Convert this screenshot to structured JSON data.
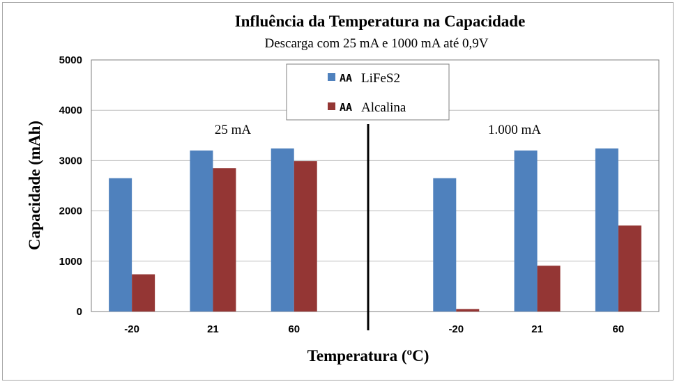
{
  "chart_data": {
    "type": "bar",
    "title": "Influência da Temperatura na Capacidade",
    "subtitle": "Descarga com 25 mA e 1000 mA até 0,9V",
    "xlabel": "Temperatura (ºC)",
    "ylabel": "Capacidade (mAh)",
    "ylim": [
      0,
      5000
    ],
    "yticks": [
      0,
      1000,
      2000,
      3000,
      4000,
      5000
    ],
    "grid": true,
    "legend_position": "top-center",
    "categories": [
      "-20",
      "21",
      "60",
      "",
      "-20",
      "21",
      "60"
    ],
    "series": [
      {
        "name": "LiFeS2",
        "legend_prefix": "AA",
        "color": "#4f81bd",
        "values": [
          2650,
          3200,
          3240,
          null,
          2650,
          3200,
          3240
        ]
      },
      {
        "name": "Alcalina",
        "legend_prefix": "AA",
        "color": "#943634",
        "values": [
          740,
          2850,
          2990,
          null,
          50,
          910,
          1710
        ]
      }
    ],
    "group_labels": [
      "25 mA",
      "1.000 mA"
    ]
  }
}
